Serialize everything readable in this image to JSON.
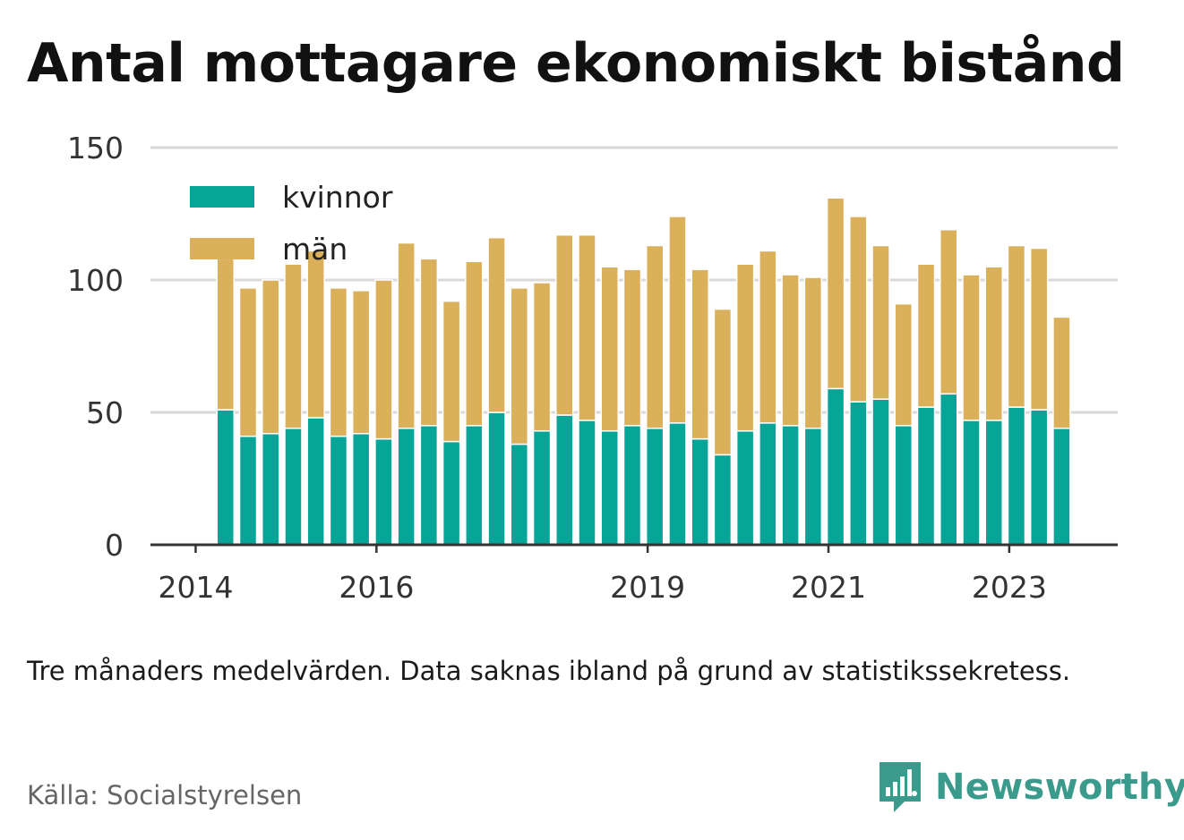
{
  "title": "Antal mottagare ekonomiskt bistånd",
  "note": "Tre månaders medelvärden. Data saknas ibland på grund av statistikssekretess.",
  "source": "Källa: Socialstyrelsen",
  "brand": {
    "name": "Newsworthy",
    "icon": "bar-chart-speech-bubble-icon"
  },
  "colors": {
    "kvinnor": "#07a597",
    "man": "#dbb05b",
    "grid": "#d9d9d9",
    "axis": "#333333",
    "brand": "#3a9a8c"
  },
  "chart_data": {
    "type": "bar",
    "stacked": true,
    "ylim": [
      0,
      150
    ],
    "yticks": [
      0,
      50,
      100,
      150
    ],
    "xticks": [
      {
        "label": "2014",
        "x": 2014.0
      },
      {
        "label": "2016",
        "x": 2016.0
      },
      {
        "label": "2019",
        "x": 2019.0
      },
      {
        "label": "2021",
        "x": 2021.0
      },
      {
        "label": "2023",
        "x": 2023.0
      }
    ],
    "xlim": [
      2013.5,
      2024.2
    ],
    "grid": true,
    "legend_position": "top-left",
    "x": [
      2014.33,
      2014.58,
      2014.83,
      2015.08,
      2015.33,
      2015.58,
      2015.83,
      2016.08,
      2016.33,
      2016.58,
      2016.83,
      2017.08,
      2017.33,
      2017.58,
      2017.83,
      2018.08,
      2018.33,
      2018.58,
      2018.83,
      2019.08,
      2019.33,
      2019.58,
      2019.83,
      2020.08,
      2020.33,
      2020.58,
      2020.83,
      2021.08,
      2021.33,
      2021.58,
      2021.83,
      2022.08,
      2022.33,
      2022.58,
      2022.83,
      2023.08,
      2023.33,
      2023.58
    ],
    "series": [
      {
        "name": "kvinnor",
        "values": [
          51,
          41,
          42,
          44,
          48,
          41,
          42,
          40,
          44,
          45,
          39,
          45,
          50,
          38,
          43,
          49,
          47,
          43,
          45,
          44,
          46,
          40,
          34,
          43,
          46,
          45,
          44,
          59,
          54,
          55,
          45,
          52,
          57,
          47,
          47,
          52,
          51,
          44
        ]
      },
      {
        "name": "män",
        "values": [
          57,
          56,
          58,
          62,
          63,
          56,
          54,
          60,
          70,
          63,
          53,
          62,
          66,
          59,
          56,
          68,
          70,
          62,
          59,
          69,
          78,
          64,
          55,
          63,
          65,
          57,
          57,
          72,
          70,
          58,
          46,
          54,
          62,
          55,
          58,
          61,
          61,
          42
        ]
      }
    ]
  }
}
